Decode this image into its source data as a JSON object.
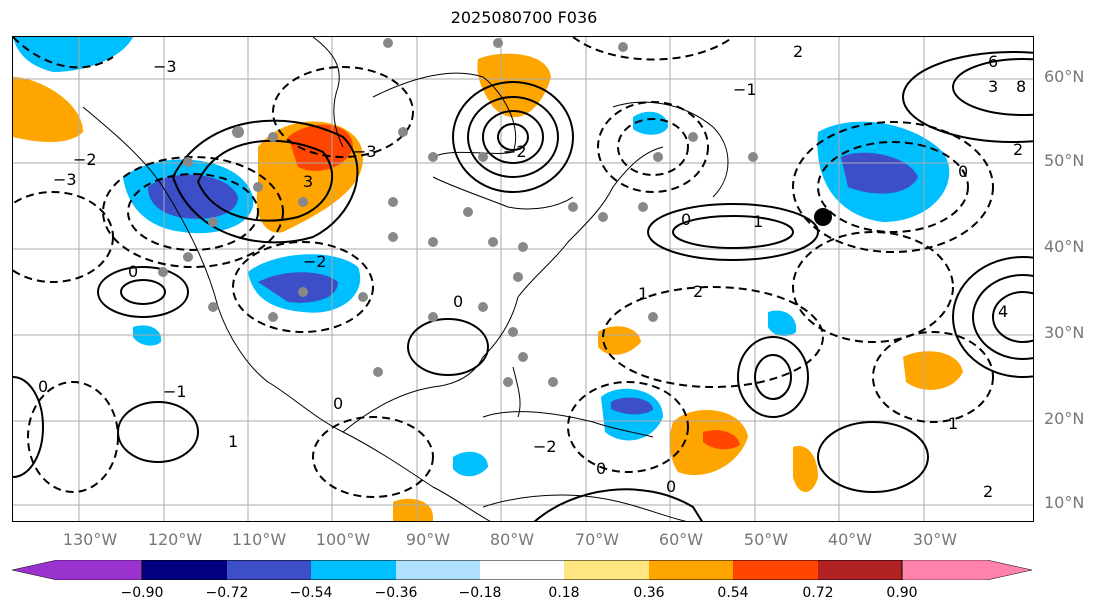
{
  "title": "2025080700 F036",
  "lat_labels": [
    "60°N",
    "50°N",
    "40°N",
    "30°N",
    "20°N",
    "10°N"
  ],
  "lon_labels": [
    "130°W",
    "120°W",
    "110°W",
    "100°W",
    "90°W",
    "80°W",
    "70°W",
    "60°W",
    "50°W",
    "40°W",
    "30°W"
  ],
  "colorbar": {
    "colors": [
      "#9a32cd",
      "#000080",
      "#3c4ec8",
      "#00bfff",
      "#b0e0ff",
      "#ffffff",
      "#ffe680",
      "#ffa500",
      "#ff4500",
      "#b22222",
      "#ff82ab"
    ],
    "tick_labels": [
      "−0.90",
      "−0.72",
      "−0.54",
      "−0.36",
      "−0.18",
      "0.18",
      "0.36",
      "0.54",
      "0.72",
      "0.90"
    ]
  },
  "contour_labels": [
    "−3",
    "−2",
    "−1",
    "0",
    "1",
    "2",
    "3",
    "4",
    "6",
    "8"
  ],
  "colors": {
    "positive_fill": "#ffa500",
    "strong_positive_fill": "#ff4500",
    "negative_fill": "#00bfff",
    "strong_negative_fill": "#3c4ec8",
    "station_marker": "#888888"
  }
}
